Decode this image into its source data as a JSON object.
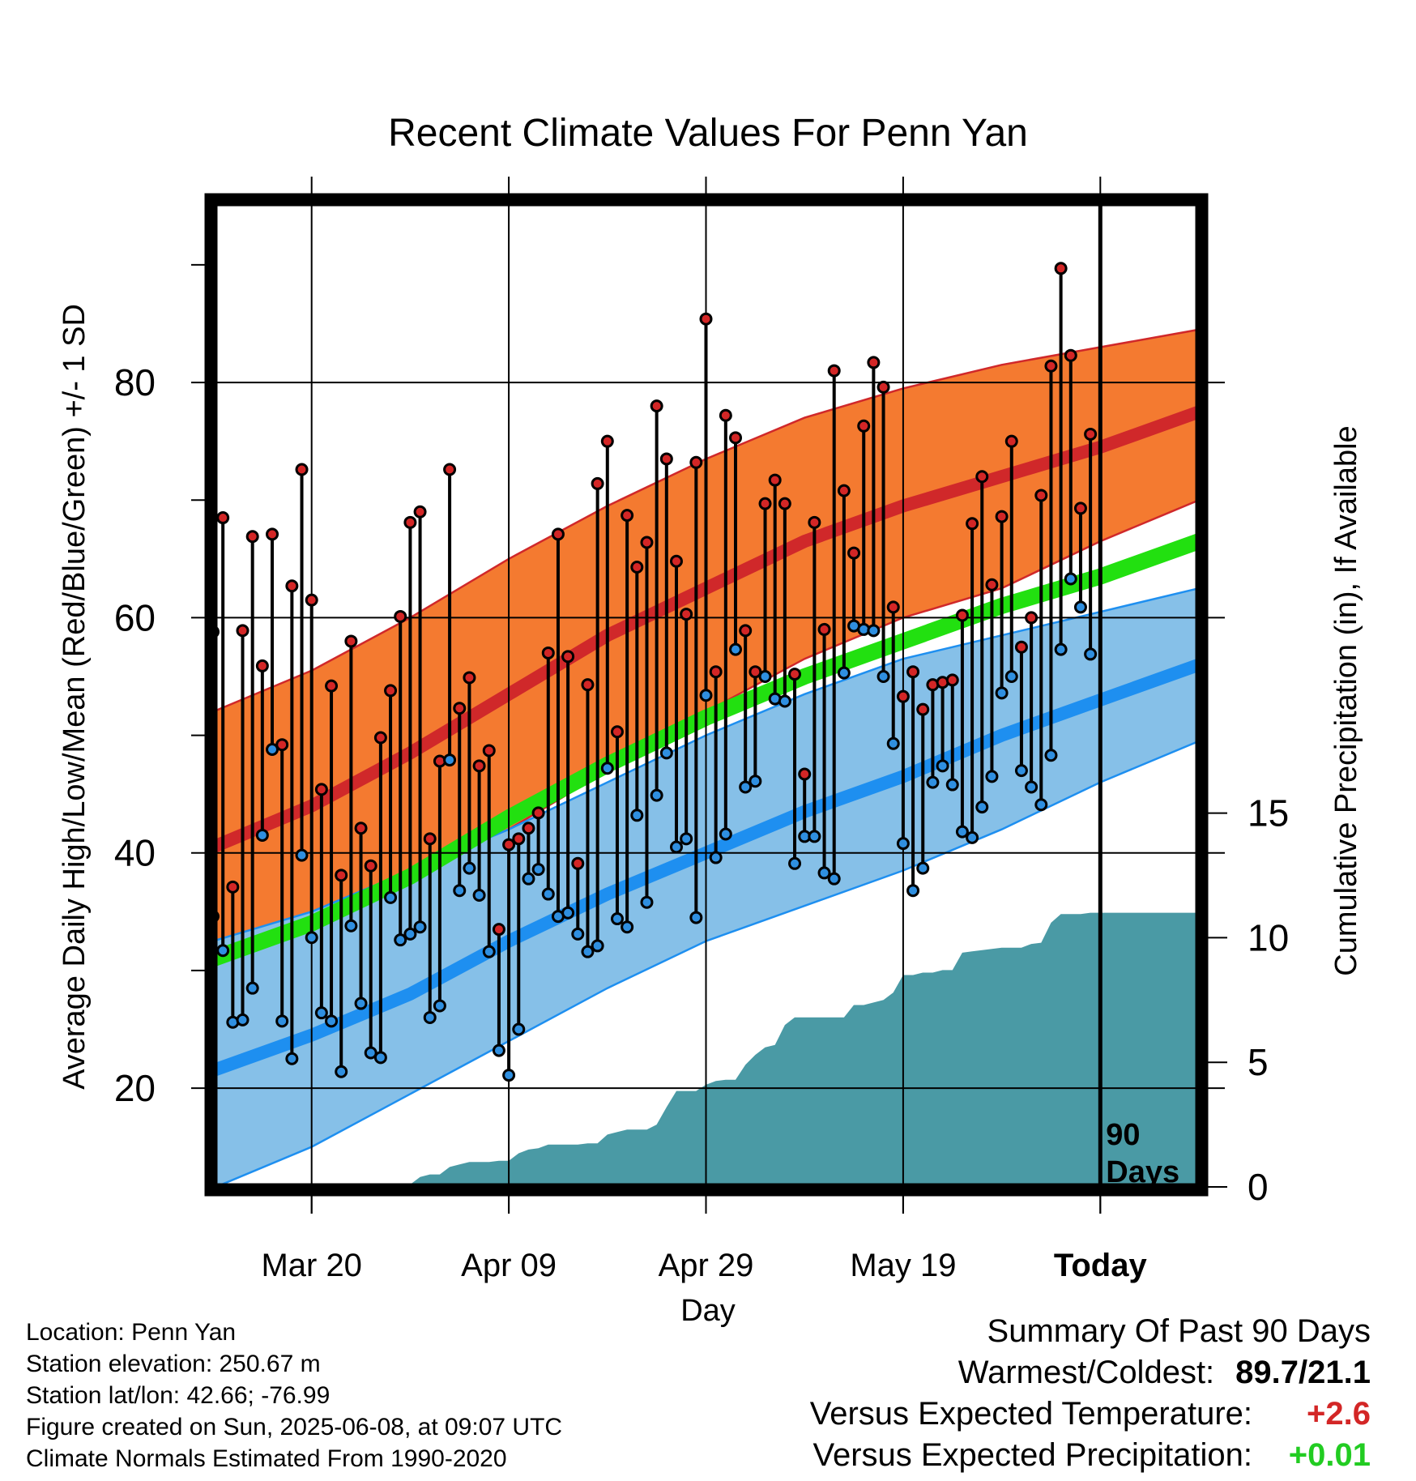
{
  "colors": {
    "high_marker": "#d32626",
    "low_marker": "#2f8fe0",
    "normal_high_band": "#f47a30",
    "normal_high_line": "#d0282a",
    "normal_low_band": "#86c0e8",
    "normal_low_line": "#1e8ff0",
    "normal_mean_line": "#22e010",
    "precip_fill": "#4a9aa5",
    "warm_text": "#d32626",
    "precip_text": "#22cc22"
  },
  "chart_data": {
    "type": "line",
    "title": "Recent Climate Values For Penn Yan",
    "xlabel": "Day",
    "ylabel": "Average Daily High/Low/Mean (Red/Blue/Green) +/- 1 SD",
    "y2label": "Cumulative Precipitation (in), If Available",
    "ylim": [
      11.6,
      95.3
    ],
    "y2lim": [
      0,
      39.5
    ],
    "xlim": [
      1,
      101
    ],
    "yticks": [
      20,
      40,
      60,
      80
    ],
    "y2ticks": [
      0,
      5,
      10,
      15
    ],
    "xticks": [
      {
        "day": 11,
        "label": "Mar 20"
      },
      {
        "day": 31,
        "label": "Apr 09"
      },
      {
        "day": 51,
        "label": "Apr 29"
      },
      {
        "day": 71,
        "label": "May 19"
      },
      {
        "day": 91,
        "label": "Today"
      }
    ],
    "today_day": 91,
    "today_label": [
      "90",
      "Days"
    ],
    "grid": true,
    "normals": {
      "days": [
        1,
        11,
        21,
        31,
        41,
        51,
        61,
        71,
        81,
        91,
        101
      ],
      "high_mean": [
        40.5,
        44,
        48.5,
        53.5,
        58.5,
        62.5,
        66.5,
        69.5,
        72,
        74.5,
        77.5
      ],
      "high_upper": [
        52,
        55.5,
        60,
        65,
        69.5,
        73.5,
        77,
        79.5,
        81.5,
        83,
        84.5
      ],
      "high_lower": [
        30,
        33,
        37,
        42,
        47,
        52,
        56.5,
        60,
        62.5,
        66.5,
        70
      ],
      "low_mean": [
        21.5,
        24.5,
        28,
        32.5,
        36.5,
        40,
        43.5,
        46.5,
        50,
        53,
        56
      ],
      "low_upper": [
        32.5,
        35,
        38.5,
        42,
        46,
        50,
        53.5,
        56.5,
        58.5,
        60.5,
        62.5
      ],
      "low_lower": [
        11.5,
        15,
        19.5,
        24,
        28.5,
        32.5,
        35.5,
        38.5,
        42,
        46,
        49.5
      ],
      "mean": [
        31,
        34,
        38,
        43,
        47.5,
        51.5,
        55,
        58,
        61,
        63.5,
        66.5
      ]
    },
    "series": [
      {
        "name": "Daily High",
        "values": [
          58.8,
          68.5,
          37.1,
          58.9,
          66.9,
          55.9,
          67.1,
          49.2,
          62.7,
          72.6,
          61.5,
          45.4,
          54.2,
          38.1,
          58,
          42.1,
          38.9,
          49.8,
          53.8,
          60.1,
          68.1,
          69,
          41.2,
          47.8,
          72.6,
          52.3,
          54.9,
          47.4,
          48.7,
          33.5,
          40.7,
          41.2,
          42.1,
          43.4,
          57,
          67.1,
          56.7,
          39.1,
          54.3,
          71.4,
          75,
          50.3,
          68.7,
          64.3,
          66.4,
          78,
          73.5,
          64.8,
          60.3,
          73.2,
          85.4,
          55.4,
          77.2,
          75.3,
          58.9,
          55.4,
          69.7,
          71.7,
          69.7,
          55.2,
          46.7,
          68.1,
          59,
          81,
          70.8,
          65.5,
          76.3,
          81.7,
          79.6,
          60.9,
          53.3,
          55.4,
          52.2,
          54.3,
          54.5,
          54.7,
          60.2,
          68,
          72,
          62.8,
          68.6,
          75,
          57.5,
          60,
          70.4,
          81.4,
          89.7,
          82.3,
          69.3,
          75.6
        ]
      },
      {
        "name": "Daily Low",
        "values": [
          34.6,
          31.7,
          25.6,
          25.8,
          28.5,
          41.5,
          48.8,
          25.7,
          22.5,
          39.8,
          32.8,
          26.4,
          25.7,
          21.4,
          33.8,
          27.2,
          23,
          22.6,
          36.2,
          32.6,
          33.1,
          33.7,
          26,
          27,
          47.9,
          36.8,
          38.7,
          36.4,
          31.6,
          23.2,
          21.1,
          25,
          37.8,
          38.6,
          36.5,
          34.6,
          34.9,
          33.1,
          31.6,
          32.1,
          47.2,
          34.4,
          33.7,
          43.2,
          35.8,
          44.9,
          48.5,
          40.5,
          41.2,
          34.5,
          53.4,
          39.6,
          41.6,
          57.3,
          45.6,
          46.1,
          55,
          53.1,
          52.9,
          39.1,
          41.4,
          41.4,
          38.3,
          37.8,
          55.3,
          59.3,
          59,
          58.9,
          55,
          49.3,
          40.8,
          36.8,
          38.7,
          46,
          47.4,
          45.8,
          41.8,
          41.3,
          43.9,
          46.5,
          53.6,
          55,
          47,
          45.6,
          44.1,
          48.3,
          57.3,
          63.3,
          60.9,
          56.9
        ]
      }
    ],
    "precipitation": {
      "days": [
        1,
        18,
        19,
        21,
        22,
        23,
        24,
        25,
        26,
        27,
        28,
        29,
        30,
        31,
        32,
        33,
        34,
        35,
        36,
        37,
        38,
        39,
        40,
        41,
        42,
        43,
        44,
        45,
        46,
        47,
        48,
        49,
        50,
        51,
        52,
        53,
        54,
        55,
        56,
        57,
        58,
        59,
        60,
        61,
        62,
        63,
        64,
        65,
        66,
        67,
        68,
        69,
        70,
        71,
        72,
        73,
        74,
        75,
        76,
        77,
        78,
        79,
        80,
        81,
        82,
        83,
        84,
        85,
        86,
        87,
        88,
        89,
        90,
        101
      ],
      "values": [
        0,
        0,
        0.05,
        0.1,
        0.4,
        0.5,
        0.5,
        0.8,
        0.9,
        1,
        1,
        1,
        1.05,
        1.05,
        1.35,
        1.5,
        1.55,
        1.7,
        1.7,
        1.7,
        1.7,
        1.75,
        1.75,
        2.1,
        2.2,
        2.3,
        2.3,
        2.3,
        2.5,
        3.2,
        3.85,
        3.85,
        3.85,
        4.1,
        4.25,
        4.3,
        4.3,
        4.9,
        5.3,
        5.6,
        5.7,
        6.5,
        6.8,
        6.8,
        6.8,
        6.8,
        6.8,
        6.8,
        7.3,
        7.3,
        7.4,
        7.5,
        7.8,
        8.5,
        8.5,
        8.6,
        8.6,
        8.7,
        8.7,
        9.4,
        9.45,
        9.5,
        9.55,
        9.6,
        9.6,
        9.6,
        9.75,
        9.8,
        10.6,
        10.95,
        10.95,
        10.95,
        11,
        11
      ]
    }
  },
  "footer": {
    "location": "Location: Penn Yan",
    "elevation": "Station elevation: 250.67 m",
    "latlon": "Station lat/lon: 42.66; -76.99",
    "created": "Figure created on Sun, 2025-06-08, at 09:07 UTC",
    "normals": "Climate Normals Estimated From 1990-2020"
  },
  "summary": {
    "heading": "Summary Of Past 90 Days",
    "warmest_label": "Warmest/Coldest:",
    "warmest_value": "89.7/21.1",
    "temp_label": "Versus Expected Temperature:",
    "temp_value": "+2.6",
    "precip_label": "Versus Expected Precipitation:",
    "precip_value": "+0.01"
  }
}
